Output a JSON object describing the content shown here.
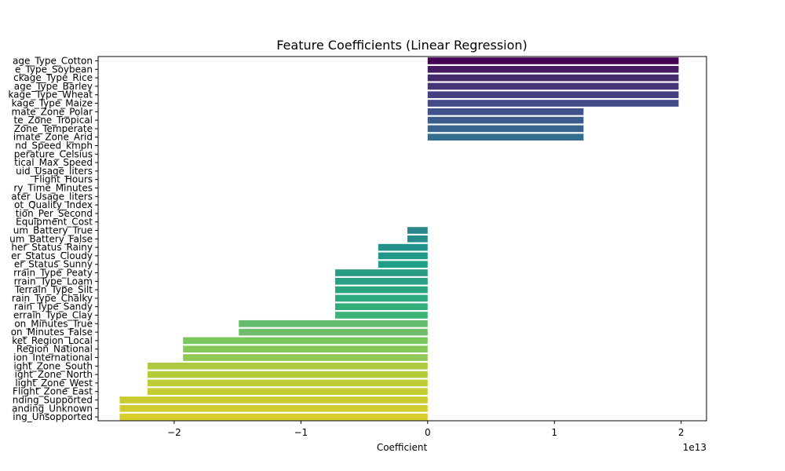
{
  "chart_data": {
    "type": "bar",
    "orientation": "horizontal",
    "title": "Feature Coefficients (Linear Regression)",
    "xlabel": "Coefficient",
    "ylabel": "",
    "offset_label": "1e13",
    "xlim": [
      -2.6,
      2.2
    ],
    "xticks": [
      {
        "value": -2,
        "label": "−2"
      },
      {
        "value": -1,
        "label": "−1"
      },
      {
        "value": 0,
        "label": "0"
      },
      {
        "value": 1,
        "label": "1"
      },
      {
        "value": 2,
        "label": "2"
      }
    ],
    "categories": [
      "age_Type_Cotton",
      "e_Type_Soybean",
      "ckage_Type_Rice",
      "age_Type_Barley",
      "kage_Type_Wheat",
      "kage_Type_Maize",
      "mate_Zone_Polar",
      "te_Zone_Tropical",
      "Zone_Temperate",
      "imate_Zone_Arid",
      "nd_Speed_kmph",
      "perature_Celsius",
      "tical_Max_Speed",
      "uid_Usage_liters",
      "Flight_Hours",
      "ry_Time_Minutes",
      "ater_Usage_liters",
      "ot_Quality_Index",
      "tion_Per_Second",
      "Equipment_Cost",
      "um_Battery_True",
      "um_Battery_False",
      "her_Status_Rainy",
      "er_Status_Cloudy",
      "er_Status_Sunny",
      "rrain_Type_Peaty",
      "rrain_Type_Loam",
      "Terrain_Type_Silt",
      "rain_Type_Chalky",
      "rain_Type_Sandy",
      "errain_Type_Clay",
      "on_Minutes_True",
      "on_Minutes_False",
      "ket_Region_Local",
      "Region_National",
      "ion_International",
      "ight_Zone_South",
      "ight_Zone_North",
      "light_Zone_West",
      "Flight_Zone_East",
      "nding_Supported",
      "anding_Unknown",
      "ing_Unsopported"
    ],
    "values": [
      1.98,
      1.98,
      1.98,
      1.98,
      1.98,
      1.98,
      1.23,
      1.23,
      1.23,
      1.23,
      0,
      0,
      0,
      0,
      0,
      0,
      0,
      0,
      0,
      0,
      -0.16,
      -0.16,
      -0.39,
      -0.39,
      -0.39,
      -0.73,
      -0.73,
      -0.73,
      -0.73,
      -0.73,
      -0.73,
      -1.49,
      -1.49,
      -1.93,
      -1.93,
      -1.93,
      -2.21,
      -2.21,
      -2.21,
      -2.21,
      -2.43,
      -2.43,
      -2.43
    ],
    "colors": [
      "#440154",
      "#461b62",
      "#46286c",
      "#463579",
      "#443f82",
      "#424a87",
      "#3f528b",
      "#3c5c8d",
      "#38648e",
      "#346d8e",
      "#31748e",
      "#2e7d8e",
      "#2b838e",
      "#298b8e",
      "#26928d",
      "#25998b",
      "#22a187",
      "#21a884",
      "#26af80",
      "#2db57a",
      "#2a878c",
      "#288c8c",
      "#24928c",
      "#21998a",
      "#1f9f88",
      "#2a9b84",
      "#299f83",
      "#2ba57f",
      "#2ca97d",
      "#31ad7a",
      "#3bb475",
      "#64ba6d",
      "#6fbd68",
      "#7ac65e",
      "#84c859",
      "#8ec855",
      "#aec93f",
      "#b6cb3a",
      "#bfcc35",
      "#c4cc32",
      "#c8cc31",
      "#d0ce2e",
      "#d7d02c"
    ],
    "grid": false,
    "legend": "none"
  }
}
